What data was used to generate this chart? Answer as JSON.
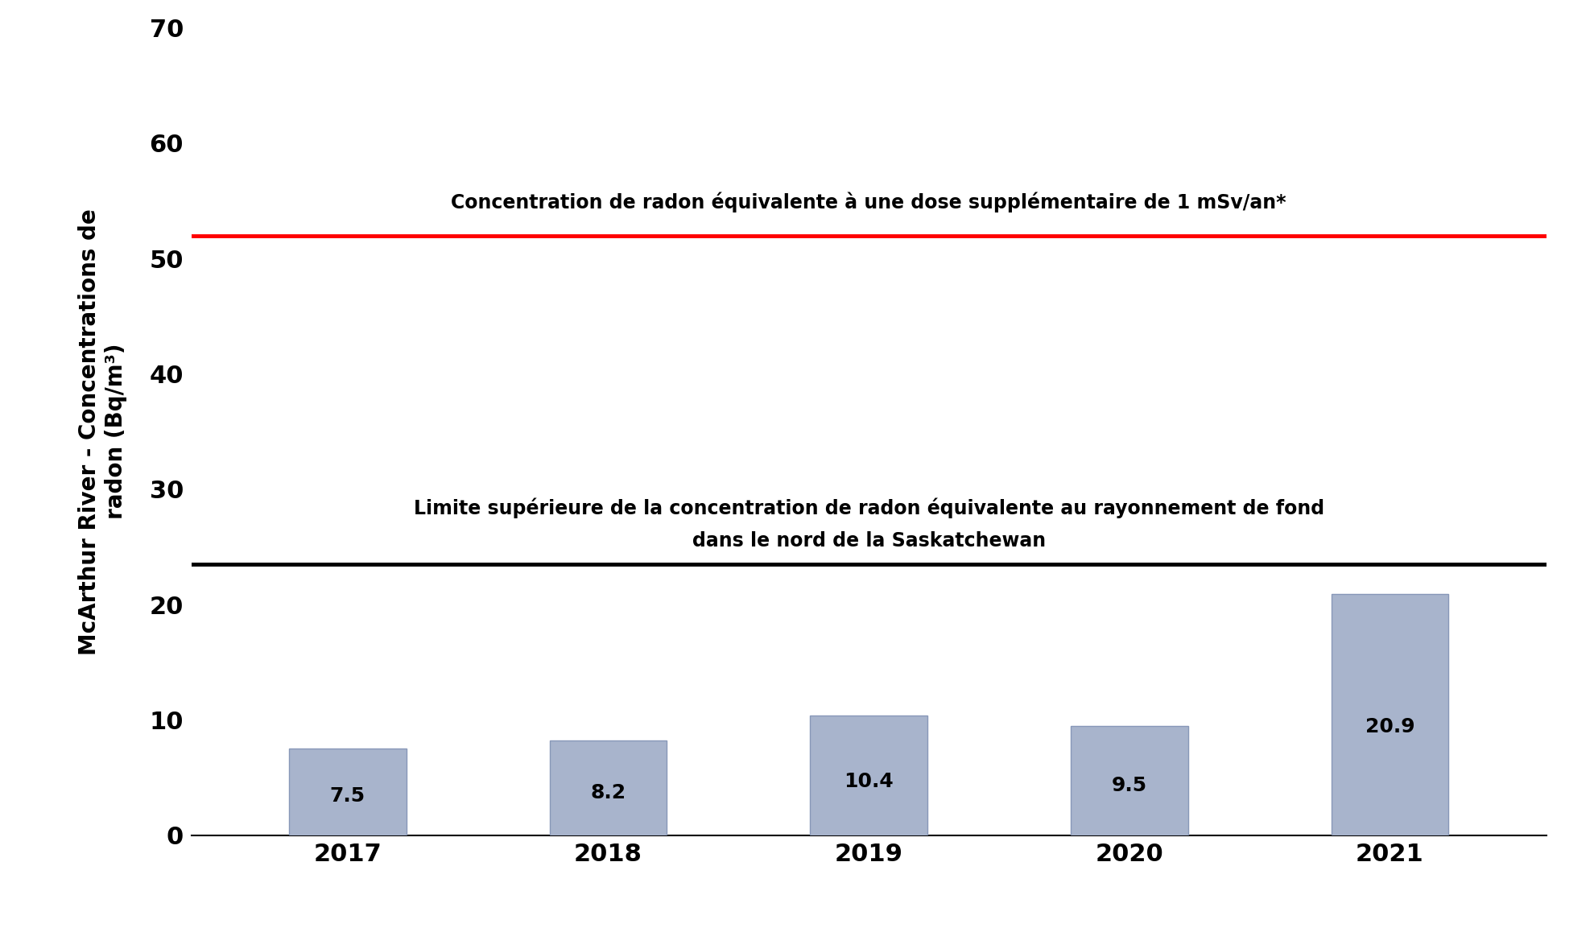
{
  "years": [
    "2017",
    "2018",
    "2019",
    "2020",
    "2021"
  ],
  "values": [
    7.5,
    8.2,
    10.4,
    9.5,
    20.9
  ],
  "bar_color": "#a8b4cc",
  "bar_edgecolor": "#8898b8",
  "red_line_value": 52,
  "black_line_value": 23.5,
  "red_line_label": "Concentration de radon équivalente à une dose supplémentaire de 1 mSv/an*",
  "black_line_label_line1": "Limite supérieure de la concentration de radon équivalente au rayonnement de fond",
  "black_line_label_line2": "dans le nord de la Saskatchewan",
  "ylabel_line1": "McArthur River - Concentrations de",
  "ylabel_line2": "radon (Bq/m³)",
  "ylim": [
    0,
    70
  ],
  "yticks": [
    0,
    10,
    20,
    30,
    40,
    50,
    60,
    70
  ],
  "background_color": "#ffffff",
  "tick_fontsize": 22,
  "ylabel_fontsize": 20,
  "annotation_fontsize": 18,
  "line_label_fontsize": 17,
  "bar_width": 0.45
}
